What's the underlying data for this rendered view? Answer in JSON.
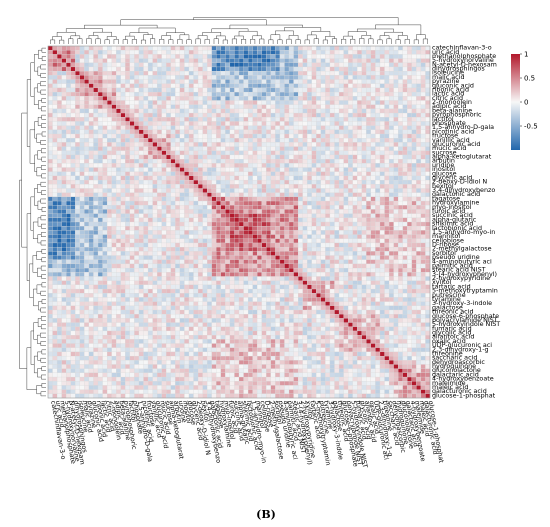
{
  "panel_label": "(B)",
  "chart_data": {
    "type": "heatmap",
    "title": "",
    "xlabel": "",
    "ylabel": "",
    "color_scale": {
      "min": -1,
      "max": 1,
      "low": "#2166ac",
      "mid": "#f7f7f7",
      "high": "#b2182b"
    },
    "legend": {
      "ticks": [
        1,
        0.5,
        0,
        -0.5
      ],
      "tick_labels": [
        "1",
        "0.5",
        "0",
        "-0.5"
      ],
      "placement": "top-right"
    },
    "grid": true,
    "row_labels": [
      "catechinflavan-3-o",
      "uric acid",
      "methanolphosphate",
      "5-hydroxynorvaline",
      "N-acetyl-D-hexosam",
      "dihydrosphingos",
      "isoleucine",
      "malic acid",
      "pyrazine",
      "gluconic acid",
      "ribonic acid",
      "lactic acid",
      "citric acid",
      "2-monoolein",
      "adipic acid",
      "beta-alanine",
      "pyrophosphoric",
      "lactitol",
      "phosphate",
      "1,5-anhydro-D-gala",
      "nicotinic acid",
      "fructose",
      "vanillic acid",
      "glucuronic acid",
      "mucic acid",
      "sucrose",
      "alpha-ketoglutarat",
      "arbutin",
      "uridine",
      "inositol",
      "glucose",
      "glyceric acid",
      "2-deoxy-D-idiol N",
      "hexitol",
      "3,4-dihydroxybenzo",
      "galactonic acid",
      "tagatose",
      "hydroxylamine",
      "myo-inositol",
      "furoic acid",
      "succinic acid",
      "alpha-glutaric",
      "shikimic acid",
      "lactobionic acid",
      "1,5-anhydro-myo-in",
      "mannitol",
      "cellobiose",
      "D-ribose",
      "2-methylgalactose",
      "sorbitol",
      "pseudo uridine",
      "4-aminobutyric aci",
      "palmitic acid",
      "stearic acid NIST",
      "3-(4-hydroxyphenyl)",
      "2-hydroxypyridine",
      "xylitol",
      "tartaric acid",
      "5-methoxytryptamin",
      "putrescine",
      "tyramine",
      "3-hydroxy-3-indole",
      "galactose",
      "threonic acid",
      "glucose-6-phosphate",
      "polyacrylamide NIST",
      "5-hydroxyindole NIST",
      "fumaric acid",
      "glycolic acid",
      "allantoic acid",
      "oxalic acid",
      "UDP-glucuronic aci",
      "2,3-dihydroxy-1-g",
      "threonine",
      "saccharic acid",
      "dehydroascorbic",
      "hydroquinone",
      "gluconolactone",
      "galactaric acid",
      "4-hydroxybenzoate",
      "maleimide",
      "maleic acid",
      "galacturonic acid",
      "glucose-1-phosphat"
    ],
    "col_labels": [
      "catechinflavan-3-o",
      "uric acid",
      "methanolphosphate",
      "5-hydroxynorvaline",
      "N-acetyl-D-hexosam",
      "dihydrosphingos",
      "isoleucine",
      "malic acid",
      "pyrazine",
      "gluconic acid",
      "ribonic acid",
      "lactic acid",
      "citric acid",
      "2-monoolein",
      "adipic acid",
      "beta-alanine",
      "pyrophosphoric",
      "lactitol",
      "phosphate",
      "1,5-anhydro-D-gala",
      "nicotinic acid",
      "fructose",
      "vanillic acid",
      "glucuronic acid",
      "mucic acid",
      "sucrose",
      "alpha-ketoglutarat",
      "arbutin",
      "uridine",
      "inositol",
      "glucose",
      "glyceric acid",
      "2-deoxy-D-idiol N",
      "hexitol",
      "3,4-dihydroxybenzo",
      "galactonic acid",
      "tagatose",
      "hydroxylamine",
      "myo-inositol",
      "furoic acid",
      "succinic acid",
      "alpha-glutaric",
      "shikimic acid",
      "lactobionic acid",
      "1,5-anhydro-myo-in",
      "mannitol",
      "cellobiose",
      "D-ribose",
      "2-methylgalactose",
      "sorbitol",
      "pseudo uridine",
      "4-aminobutyric aci",
      "palmitic acid",
      "stearic acid NIST",
      "3-(4-hydroxyphenyl)",
      "2-hydroxypyridine",
      "xylitol",
      "tartaric acid",
      "5-methoxytryptamin",
      "putrescine",
      "tyramine",
      "3-hydroxy-3-indole",
      "galactose",
      "threonic acid",
      "glucose-6-phosphate",
      "polyacrylamide NIST",
      "5-hydroxyindole NIST",
      "fumaric acid",
      "glycolic acid",
      "allantoic acid",
      "oxalic acid",
      "UDP-glucuronic aci",
      "2,3-dihydroxy-1-g",
      "threonine",
      "saccharic acid",
      "dehydroascorbic",
      "hydroquinone",
      "gluconolactone",
      "galactaric acid",
      "4-hydroxybenzoate",
      "maleimide",
      "maleic acid",
      "galacturonic acid",
      "glucose-1-phosphat"
    ],
    "blocks": [
      {
        "rows": [
          0,
          5
        ],
        "cols": [
          0,
          5
        ],
        "value": 0.55
      },
      {
        "rows": [
          0,
          5
        ],
        "cols": [
          36,
          50
        ],
        "value": -0.7
      },
      {
        "rows": [
          36,
          50
        ],
        "cols": [
          0,
          5
        ],
        "value": -0.7
      },
      {
        "rows": [
          2,
          4
        ],
        "cols": [
          40,
          48
        ],
        "value": -0.85
      },
      {
        "rows": [
          40,
          48
        ],
        "cols": [
          2,
          4
        ],
        "value": -0.85
      },
      {
        "rows": [
          0,
          12
        ],
        "cols": [
          36,
          54
        ],
        "value": -0.35
      },
      {
        "rows": [
          36,
          54
        ],
        "cols": [
          0,
          12
        ],
        "value": -0.35
      },
      {
        "rows": [
          36,
          54
        ],
        "cols": [
          36,
          54
        ],
        "value": 0.45
      },
      {
        "rows": [
          40,
          48
        ],
        "cols": [
          40,
          48
        ],
        "value": 0.65
      },
      {
        "rows": [
          6,
          14
        ],
        "cols": [
          6,
          14
        ],
        "value": 0.3
      },
      {
        "rows": [
          20,
          26
        ],
        "cols": [
          20,
          26
        ],
        "value": 0.2
      },
      {
        "rows": [
          56,
          62
        ],
        "cols": [
          56,
          62
        ],
        "value": 0.25
      },
      {
        "rows": [
          70,
          83
        ],
        "cols": [
          36,
          54
        ],
        "value": 0.18
      },
      {
        "rows": [
          36,
          54
        ],
        "cols": [
          70,
          83
        ],
        "value": 0.18
      },
      {
        "rows": [
          64,
          72
        ],
        "cols": [
          64,
          72
        ],
        "value": 0.2
      },
      {
        "rows": [
          76,
          83
        ],
        "cols": [
          76,
          83
        ],
        "value": 0.3
      }
    ],
    "diagonal_value": 1
  }
}
